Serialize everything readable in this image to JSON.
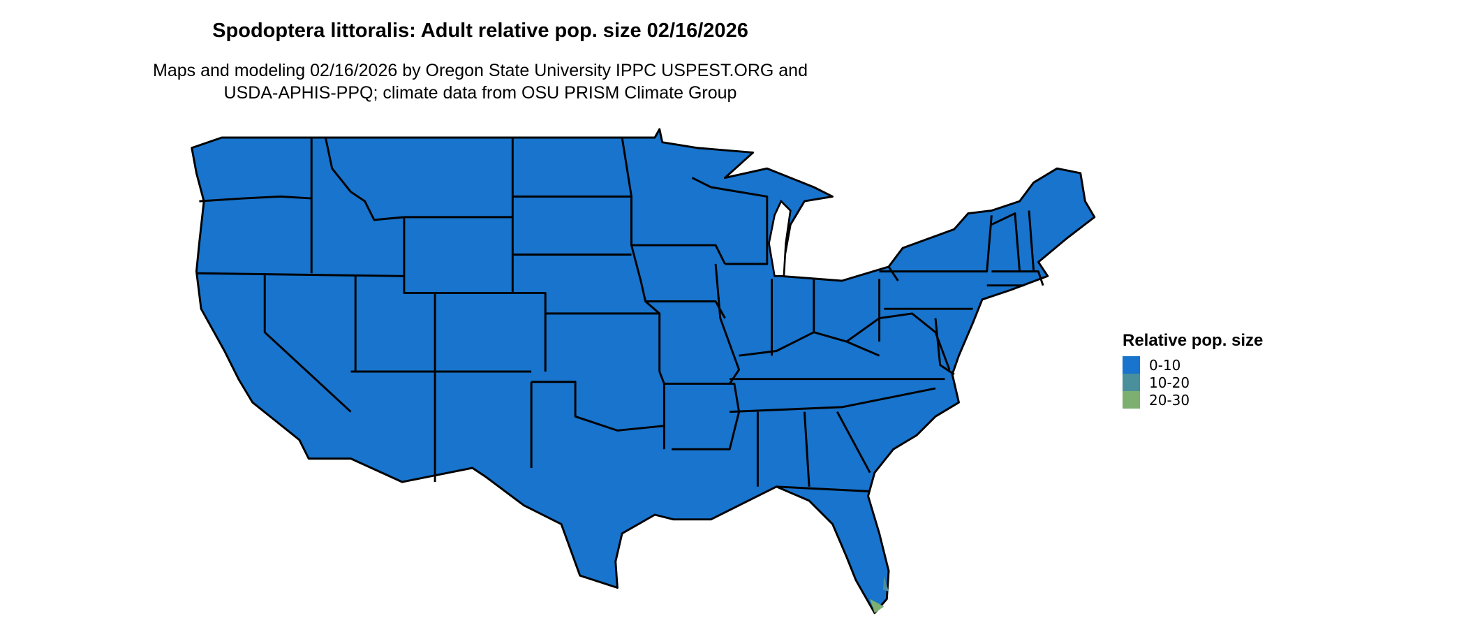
{
  "title": "Spodoptera littoralis: Adult relative pop. size 02/16/2026",
  "subtitle_line1": "Maps and modeling 02/16/2026 by Oregon State University IPPC USPEST.ORG and",
  "subtitle_line2": "USDA-APHIS-PPQ; climate data from OSU PRISM Climate Group",
  "map": {
    "region": "Contiguous United States (state boundaries)",
    "dominant_class": "0-10",
    "fill_color": "#1874CD",
    "border_color": "#000000"
  },
  "legend": {
    "title": "Relative pop. size",
    "items": [
      {
        "label": "0-10",
        "color": "#1874CD"
      },
      {
        "label": "10-20",
        "color": "#4A8F9C"
      },
      {
        "label": "20-30",
        "color": "#7DAF70"
      }
    ]
  }
}
